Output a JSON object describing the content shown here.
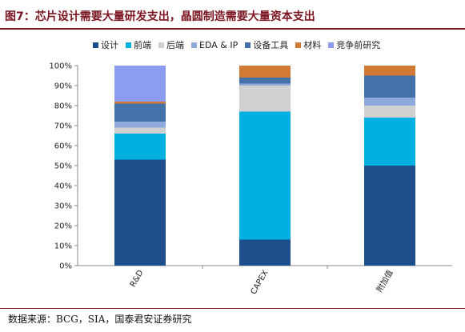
{
  "figure": {
    "title": "图7：芯片设计需要大量研发支出，晶圆制造需要大量资本支出",
    "source": "数据来源：BCG，SIA，国泰君安证券研究"
  },
  "chart_data": {
    "type": "bar",
    "stacked": true,
    "categories": [
      "R&D",
      "CAPEX",
      "附加值"
    ],
    "ylim": [
      0,
      100
    ],
    "yticks": [
      "0%",
      "10%",
      "20%",
      "30%",
      "40%",
      "50%",
      "60%",
      "70%",
      "80%",
      "90%",
      "100%"
    ],
    "legend_position": "top",
    "grid": false,
    "series": [
      {
        "name": "设计",
        "color": "#1f4e8c",
        "values": [
          53,
          13,
          50
        ]
      },
      {
        "name": "前端",
        "color": "#00b0e0",
        "values": [
          13,
          64,
          24
        ]
      },
      {
        "name": "后端",
        "color": "#d0d0d0",
        "values": [
          3,
          13,
          6
        ]
      },
      {
        "name": "EDA & IP",
        "color": "#8eaadb",
        "values": [
          3,
          1,
          4
        ]
      },
      {
        "name": "设备工具",
        "color": "#4472a8",
        "values": [
          9,
          3,
          11
        ]
      },
      {
        "name": "材料",
        "color": "#d07a35",
        "values": [
          1,
          6,
          5
        ]
      },
      {
        "name": "竞争前研究",
        "color": "#8c9cf0",
        "values": [
          18,
          0,
          0
        ]
      }
    ]
  }
}
